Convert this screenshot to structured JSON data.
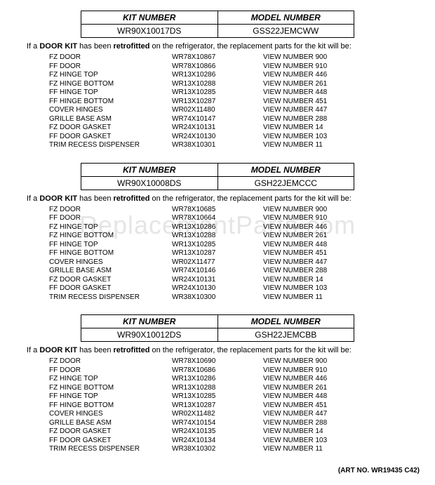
{
  "header_labels": {
    "kit": "KIT NUMBER",
    "model": "MODEL NUMBER"
  },
  "intro_parts": {
    "p1": "If a ",
    "p2": "DOOR KIT",
    "p3": " has been ",
    "p4": "retrofitted",
    "p5": " on the refrigerator, the replacement parts for the kit will be:"
  },
  "view_prefix": "VIEW NUMBER ",
  "art_no": "(ART NO. WR19435 C42)",
  "watermark": "ReplacementParts.com",
  "kits": [
    {
      "kit_number": "WR90X10017DS",
      "model_number": "GSS22JEMCWW",
      "rows": [
        {
          "desc": "FZ DOOR",
          "part": "WR78X10867",
          "view": "900"
        },
        {
          "desc": "FF DOOR",
          "part": "WR78X10866",
          "view": "910"
        },
        {
          "desc": "FZ HINGE TOP",
          "part": "WR13X10286",
          "view": "446"
        },
        {
          "desc": "FZ HINGE BOTTOM",
          "part": "WR13X10288",
          "view": "261"
        },
        {
          "desc": "FF HINGE TOP",
          "part": "WR13X10285",
          "view": "448"
        },
        {
          "desc": "FF HINGE BOTTOM",
          "part": "WR13X10287",
          "view": "451"
        },
        {
          "desc": "COVER HINGES",
          "part": "WR02X11480",
          "view": "447"
        },
        {
          "desc": "GRILLE BASE ASM",
          "part": "WR74X10147",
          "view": "288"
        },
        {
          "desc": "FZ DOOR GASKET",
          "part": "WR24X10131",
          "view": "14"
        },
        {
          "desc": "FF DOOR GASKET",
          "part": "WR24X10130",
          "view": "103"
        },
        {
          "desc": "TRIM RECESS DISPENSER",
          "part": "WR38X10301",
          "view": "11"
        }
      ]
    },
    {
      "kit_number": "WR90X10008DS",
      "model_number": "GSH22JEMCCC",
      "rows": [
        {
          "desc": "FZ DOOR",
          "part": "WR78X10685",
          "view": "900"
        },
        {
          "desc": "FF DOOR",
          "part": "WR78X10664",
          "view": "910"
        },
        {
          "desc": "FZ HINGE TOP",
          "part": "WR13X10286",
          "view": "446"
        },
        {
          "desc": "FZ HINGE BOTTOM",
          "part": "WR13X10288",
          "view": "261"
        },
        {
          "desc": "FF HINGE TOP",
          "part": "WR13X10285",
          "view": "448"
        },
        {
          "desc": "FF HINGE BOTTOM",
          "part": "WR13X10287",
          "view": "451"
        },
        {
          "desc": "COVER HINGES",
          "part": "WR02X11477",
          "view": "447"
        },
        {
          "desc": "GRILLE BASE ASM",
          "part": "WR74X10146",
          "view": "288"
        },
        {
          "desc": "FZ DOOR GASKET",
          "part": "WR24X10131",
          "view": "14"
        },
        {
          "desc": "FF DOOR GASKET",
          "part": "WR24X10130",
          "view": "103"
        },
        {
          "desc": "TRIM RECESS DISPENSER",
          "part": "WR38X10300",
          "view": "11"
        }
      ]
    },
    {
      "kit_number": "WR90X10012DS",
      "model_number": "GSH22JEMCBB",
      "rows": [
        {
          "desc": "FZ DOOR",
          "part": "WR78X10690",
          "view": "900"
        },
        {
          "desc": "FF DOOR",
          "part": "WR78X10686",
          "view": "910"
        },
        {
          "desc": "FZ HINGE TOP",
          "part": "WR13X10286",
          "view": "446"
        },
        {
          "desc": "FZ HINGE BOTTOM",
          "part": "WR13X10288",
          "view": "261"
        },
        {
          "desc": "FF HINGE TOP",
          "part": "WR13X10285",
          "view": "448"
        },
        {
          "desc": "FF HINGE BOTTOM",
          "part": "WR13X10287",
          "view": "451"
        },
        {
          "desc": "COVER HINGES",
          "part": "WR02X11482",
          "view": "447"
        },
        {
          "desc": "GRILLE BASE ASM",
          "part": "WR74X10154",
          "view": "288"
        },
        {
          "desc": "FZ DOOR GASKET",
          "part": "WR24X10135",
          "view": "14"
        },
        {
          "desc": "FF DOOR GASKET",
          "part": "WR24X10134",
          "view": "103"
        },
        {
          "desc": "TRIM RECESS DISPENSER",
          "part": "WR38X10302",
          "view": "11"
        }
      ]
    }
  ]
}
